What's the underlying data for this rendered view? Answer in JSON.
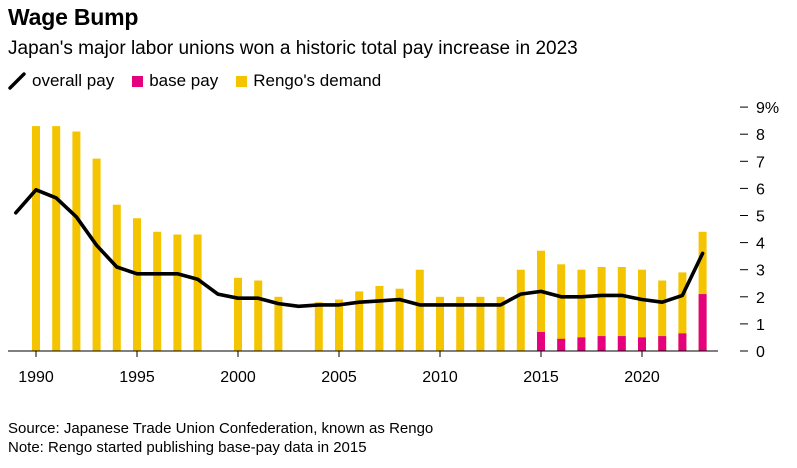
{
  "title": "Wage Bump",
  "subtitle": "Japan's major labor unions won a historic total pay increase in 2023",
  "legend": [
    {
      "label": "overall pay",
      "color": "#000000",
      "kind": "line"
    },
    {
      "label": "base pay",
      "color": "#E5007E",
      "kind": "box"
    },
    {
      "label": "Rengo's demand",
      "color": "#F5C400",
      "kind": "box"
    }
  ],
  "footer": {
    "source": "Source: Japanese Trade Union Confederation, known as Rengo",
    "note": "Note: Rengo started publishing base-pay data in 2015"
  },
  "chart_data": {
    "type": "bar",
    "x": [
      1990,
      1991,
      1992,
      1993,
      1994,
      1995,
      1996,
      1997,
      1998,
      1999,
      2000,
      2001,
      2002,
      2003,
      2004,
      2005,
      2006,
      2007,
      2008,
      2009,
      2010,
      2011,
      2012,
      2013,
      2014,
      2015,
      2016,
      2017,
      2018,
      2019,
      2020,
      2021,
      2022,
      2023
    ],
    "xticks": [
      1990,
      1995,
      2000,
      2005,
      2010,
      2015,
      2020
    ],
    "xtick_labels": [
      "1990",
      "1995",
      "2000",
      "2005",
      "2010",
      "2015",
      "2020"
    ],
    "ylim": [
      0,
      9
    ],
    "yticks": [
      0,
      1,
      2,
      3,
      4,
      5,
      6,
      7,
      8,
      9
    ],
    "ytick_labels": [
      "0",
      "1",
      "2",
      "3",
      "4",
      "5",
      "6",
      "7",
      "8",
      "9%"
    ],
    "grid": false,
    "series": [
      {
        "name": "Rengo's demand",
        "type": "bar",
        "color": "#F5C400",
        "values": [
          8.3,
          8.3,
          8.1,
          7.1,
          5.4,
          4.9,
          4.4,
          4.3,
          4.3,
          null,
          2.7,
          2.6,
          2.0,
          null,
          1.8,
          1.9,
          2.2,
          2.4,
          2.3,
          3.0,
          2.0,
          2.0,
          2.0,
          2.0,
          3.0,
          3.7,
          3.2,
          3.0,
          3.1,
          3.1,
          3.0,
          2.6,
          2.9,
          4.4
        ]
      },
      {
        "name": "base pay",
        "type": "bar",
        "color": "#E5007E",
        "values": [
          null,
          null,
          null,
          null,
          null,
          null,
          null,
          null,
          null,
          null,
          null,
          null,
          null,
          null,
          null,
          null,
          null,
          null,
          null,
          null,
          null,
          null,
          null,
          null,
          null,
          0.7,
          0.45,
          0.5,
          0.55,
          0.55,
          0.5,
          0.55,
          0.65,
          2.1
        ]
      },
      {
        "name": "overall pay",
        "type": "line",
        "color": "#000000",
        "x": [
          1989,
          1990,
          1991,
          1992,
          1993,
          1994,
          1995,
          1996,
          1997,
          1998,
          1999,
          2000,
          2001,
          2002,
          2003,
          2004,
          2005,
          2006,
          2007,
          2008,
          2009,
          2010,
          2011,
          2012,
          2013,
          2014,
          2015,
          2016,
          2017,
          2018,
          2019,
          2020,
          2021,
          2022,
          2023
        ],
        "values": [
          5.1,
          5.95,
          5.65,
          4.95,
          3.9,
          3.1,
          2.85,
          2.85,
          2.85,
          2.65,
          2.1,
          1.95,
          1.95,
          1.75,
          1.65,
          1.7,
          1.7,
          1.8,
          1.85,
          1.9,
          1.7,
          1.7,
          1.7,
          1.7,
          1.7,
          2.1,
          2.2,
          2.0,
          2.0,
          2.05,
          2.05,
          1.9,
          1.8,
          2.05,
          3.6
        ]
      }
    ]
  }
}
